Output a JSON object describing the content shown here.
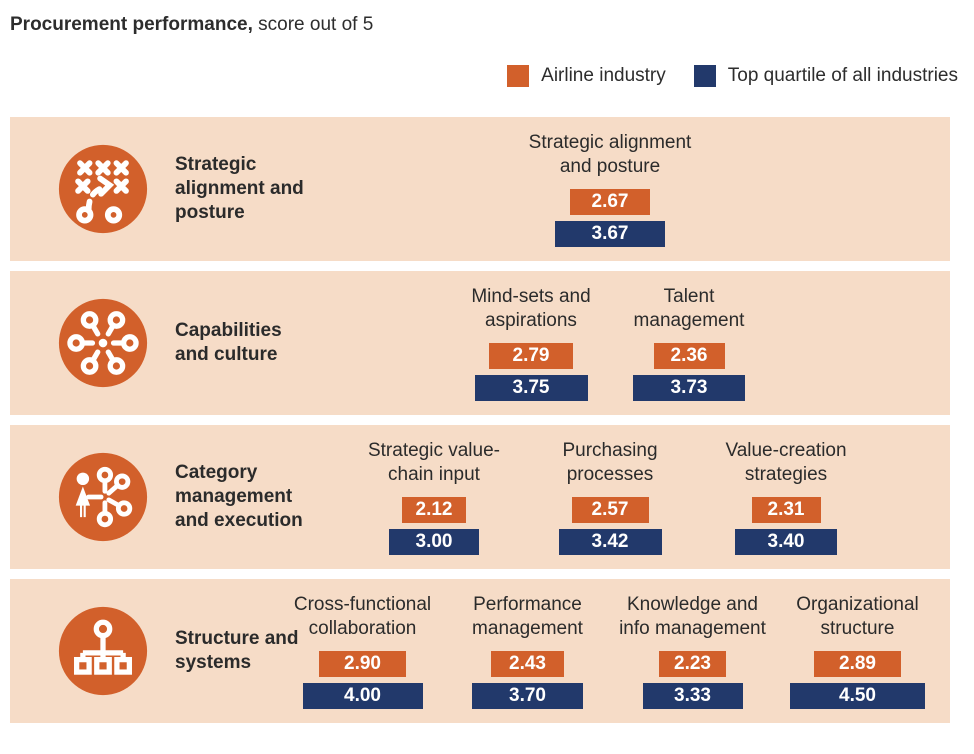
{
  "title": {
    "bold": "Procurement performance,",
    "rest": "score out of 5"
  },
  "legend": {
    "items": [
      {
        "label": "Airline industry",
        "color": "#d2602b"
      },
      {
        "label": "Top quartile of all industries",
        "color": "#22396b"
      }
    ]
  },
  "colors": {
    "airline": "#d2602b",
    "top_quartile": "#22396b",
    "row_background": "#f6dcc7",
    "text": "#2d2d2d"
  },
  "chart_data": {
    "type": "bar",
    "title": "Procurement performance, score out of 5",
    "value_range": [
      0,
      5
    ],
    "series_names": [
      "Airline industry",
      "Top quartile of all industries"
    ],
    "legend_position": "top-right",
    "rows": [
      {
        "category": "Strategic alignment and posture",
        "icon": "strategy-playbook-icon",
        "metrics": [
          {
            "label": "Strategic alignment and posture",
            "airline": "2.67",
            "top_quartile": "3.67"
          }
        ]
      },
      {
        "category": "Capabilities and culture",
        "icon": "capability-hub-icon",
        "metrics": [
          {
            "label": "Mind-sets and aspirations",
            "airline": "2.79",
            "top_quartile": "3.75"
          },
          {
            "label": "Talent management",
            "airline": "2.36",
            "top_quartile": "3.73"
          }
        ]
      },
      {
        "category": "Category management and execution",
        "icon": "person-network-icon",
        "metrics": [
          {
            "label": "Strategic value-chain input",
            "airline": "2.12",
            "top_quartile": "3.00"
          },
          {
            "label": "Purchasing processes",
            "airline": "2.57",
            "top_quartile": "3.42"
          },
          {
            "label": "Value-creation strategies",
            "airline": "2.31",
            "top_quartile": "3.40"
          }
        ]
      },
      {
        "category": "Structure and systems",
        "icon": "org-chart-icon",
        "metrics": [
          {
            "label": "Cross-functional collaboration",
            "airline": "2.90",
            "top_quartile": "4.00"
          },
          {
            "label": "Performance management",
            "airline": "2.43",
            "top_quartile": "3.70"
          },
          {
            "label": "Knowledge and info management",
            "airline": "2.23",
            "top_quartile": "3.33"
          },
          {
            "label": "Organizational structure",
            "airline": "2.89",
            "top_quartile": "4.50"
          }
        ]
      }
    ]
  }
}
